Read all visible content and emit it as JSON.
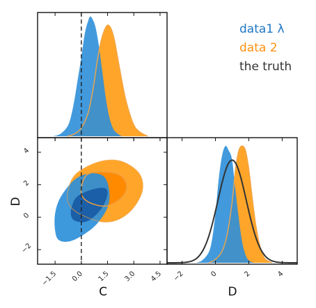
{
  "chart_data": {
    "type": "corner",
    "parameters": [
      "C",
      "D"
    ],
    "axis_labels": {
      "x_bottom_left": "C",
      "x_bottom_right": "D",
      "y_left": "D"
    },
    "c_ticks": [
      -1.5,
      0.0,
      1.5,
      3.0,
      4.5
    ],
    "c_tick_labels": [
      "−1.5",
      "0.0",
      "1.5",
      "3.0",
      "4.5"
    ],
    "d_ticks": [
      -2,
      0,
      2,
      4
    ],
    "d_tick_labels": [
      "−2",
      "0",
      "2",
      "4"
    ],
    "c_range": [
      -2.5,
      4.9
    ],
    "d_range": [
      -2.9,
      4.9
    ],
    "truth_line": {
      "parameter": "C",
      "value": 0.0
    },
    "legend": [
      {
        "label": "data1 λ",
        "color": "#1f77c4"
      },
      {
        "label": "data 2",
        "color": "#ff9010"
      },
      {
        "label": "the truth",
        "color": "#333333"
      }
    ],
    "series": [
      {
        "name": "data1 λ",
        "color": "#2e8fd9",
        "dark_color": "#1b5fa8",
        "c_marginal": [
          [
            -1.6,
            0.0
          ],
          [
            -1.2,
            0.02
          ],
          [
            -0.8,
            0.08
          ],
          [
            -0.6,
            0.16
          ],
          [
            -0.4,
            0.3
          ],
          [
            -0.2,
            0.48
          ],
          [
            0.0,
            0.66
          ],
          [
            0.2,
            0.86
          ],
          [
            0.4,
            0.97
          ],
          [
            0.5,
            1.0
          ],
          [
            0.6,
            0.99
          ],
          [
            0.8,
            0.92
          ],
          [
            1.0,
            0.76
          ],
          [
            1.2,
            0.54
          ],
          [
            1.4,
            0.32
          ],
          [
            1.6,
            0.16
          ],
          [
            1.8,
            0.07
          ],
          [
            2.0,
            0.03
          ],
          [
            2.3,
            0.0
          ]
        ],
        "d_marginal": [
          [
            -1.2,
            0.0
          ],
          [
            -0.8,
            0.02
          ],
          [
            -0.4,
            0.09
          ],
          [
            -0.2,
            0.2
          ],
          [
            0.0,
            0.42
          ],
          [
            0.2,
            0.72
          ],
          [
            0.4,
            0.92
          ],
          [
            0.6,
            1.0
          ],
          [
            0.8,
            0.96
          ],
          [
            1.0,
            0.88
          ],
          [
            1.2,
            0.62
          ],
          [
            1.4,
            0.38
          ],
          [
            1.6,
            0.18
          ],
          [
            1.8,
            0.07
          ],
          [
            2.0,
            0.02
          ],
          [
            2.3,
            0.0
          ]
        ],
        "contour_outer": [
          [
            -1.5,
            -0.8
          ],
          [
            -1.3,
            -1.4
          ],
          [
            -0.7,
            -1.5
          ],
          [
            0.1,
            -1.1
          ],
          [
            0.9,
            -0.4
          ],
          [
            1.5,
            0.6
          ],
          [
            1.6,
            1.6
          ],
          [
            1.3,
            2.5
          ],
          [
            0.5,
            2.7
          ],
          [
            -0.4,
            2.3
          ],
          [
            -1.2,
            1.2
          ],
          [
            -1.5,
            0.2
          ]
        ],
        "contour_inner": [
          [
            -0.6,
            0.2
          ],
          [
            -0.4,
            -0.2
          ],
          [
            0.2,
            -0.3
          ],
          [
            0.8,
            0.1
          ],
          [
            1.3,
            0.8
          ],
          [
            1.5,
            1.5
          ],
          [
            1.3,
            1.8
          ],
          [
            0.6,
            1.7
          ],
          [
            -0.2,
            1.3
          ],
          [
            -0.5,
            0.8
          ]
        ]
      },
      {
        "name": "data 2",
        "color": "#ffa52a",
        "dark_color": "#ff8a00",
        "c_marginal": [
          [
            -0.8,
            0.0
          ],
          [
            -0.4,
            0.02
          ],
          [
            0.0,
            0.07
          ],
          [
            0.4,
            0.2
          ],
          [
            0.7,
            0.42
          ],
          [
            0.9,
            0.62
          ],
          [
            1.1,
            0.78
          ],
          [
            1.3,
            0.88
          ],
          [
            1.5,
            0.93
          ],
          [
            1.7,
            0.9
          ],
          [
            1.9,
            0.8
          ],
          [
            2.1,
            0.64
          ],
          [
            2.3,
            0.48
          ],
          [
            2.5,
            0.33
          ],
          [
            2.7,
            0.22
          ],
          [
            2.9,
            0.13
          ],
          [
            3.1,
            0.07
          ],
          [
            3.4,
            0.03
          ],
          [
            3.8,
            0.0
          ]
        ],
        "d_marginal": [
          [
            -0.4,
            0.0
          ],
          [
            0.0,
            0.03
          ],
          [
            0.4,
            0.1
          ],
          [
            0.7,
            0.24
          ],
          [
            1.0,
            0.52
          ],
          [
            1.2,
            0.8
          ],
          [
            1.4,
            0.96
          ],
          [
            1.6,
            1.0
          ],
          [
            1.8,
            0.96
          ],
          [
            2.0,
            0.8
          ],
          [
            2.2,
            0.56
          ],
          [
            2.4,
            0.34
          ],
          [
            2.6,
            0.18
          ],
          [
            2.8,
            0.08
          ],
          [
            3.0,
            0.03
          ],
          [
            3.4,
            0.0
          ]
        ],
        "contour_outer": [
          [
            -0.8,
            1.2
          ],
          [
            -0.5,
            2.4
          ],
          [
            0.3,
            3.1
          ],
          [
            1.4,
            3.5
          ],
          [
            2.4,
            3.4
          ],
          [
            3.3,
            2.7
          ],
          [
            3.5,
            1.7
          ],
          [
            3.0,
            0.6
          ],
          [
            2.2,
            -0.1
          ],
          [
            1.3,
            -0.3
          ],
          [
            0.3,
            0.0
          ],
          [
            -0.5,
            0.5
          ]
        ],
        "contour_inner": [
          [
            0.0,
            1.8
          ],
          [
            0.3,
            2.6
          ],
          [
            1.1,
            2.8
          ],
          [
            2.2,
            2.6
          ],
          [
            2.6,
            1.9
          ],
          [
            2.3,
            1.2
          ],
          [
            1.5,
            0.7
          ],
          [
            0.7,
            0.8
          ],
          [
            0.1,
            1.2
          ]
        ]
      },
      {
        "name": "the truth",
        "color": "#333333",
        "d_marginal_curve": {
          "mean": 1.0,
          "sd": 0.85,
          "peak": 0.88
        }
      }
    ]
  }
}
